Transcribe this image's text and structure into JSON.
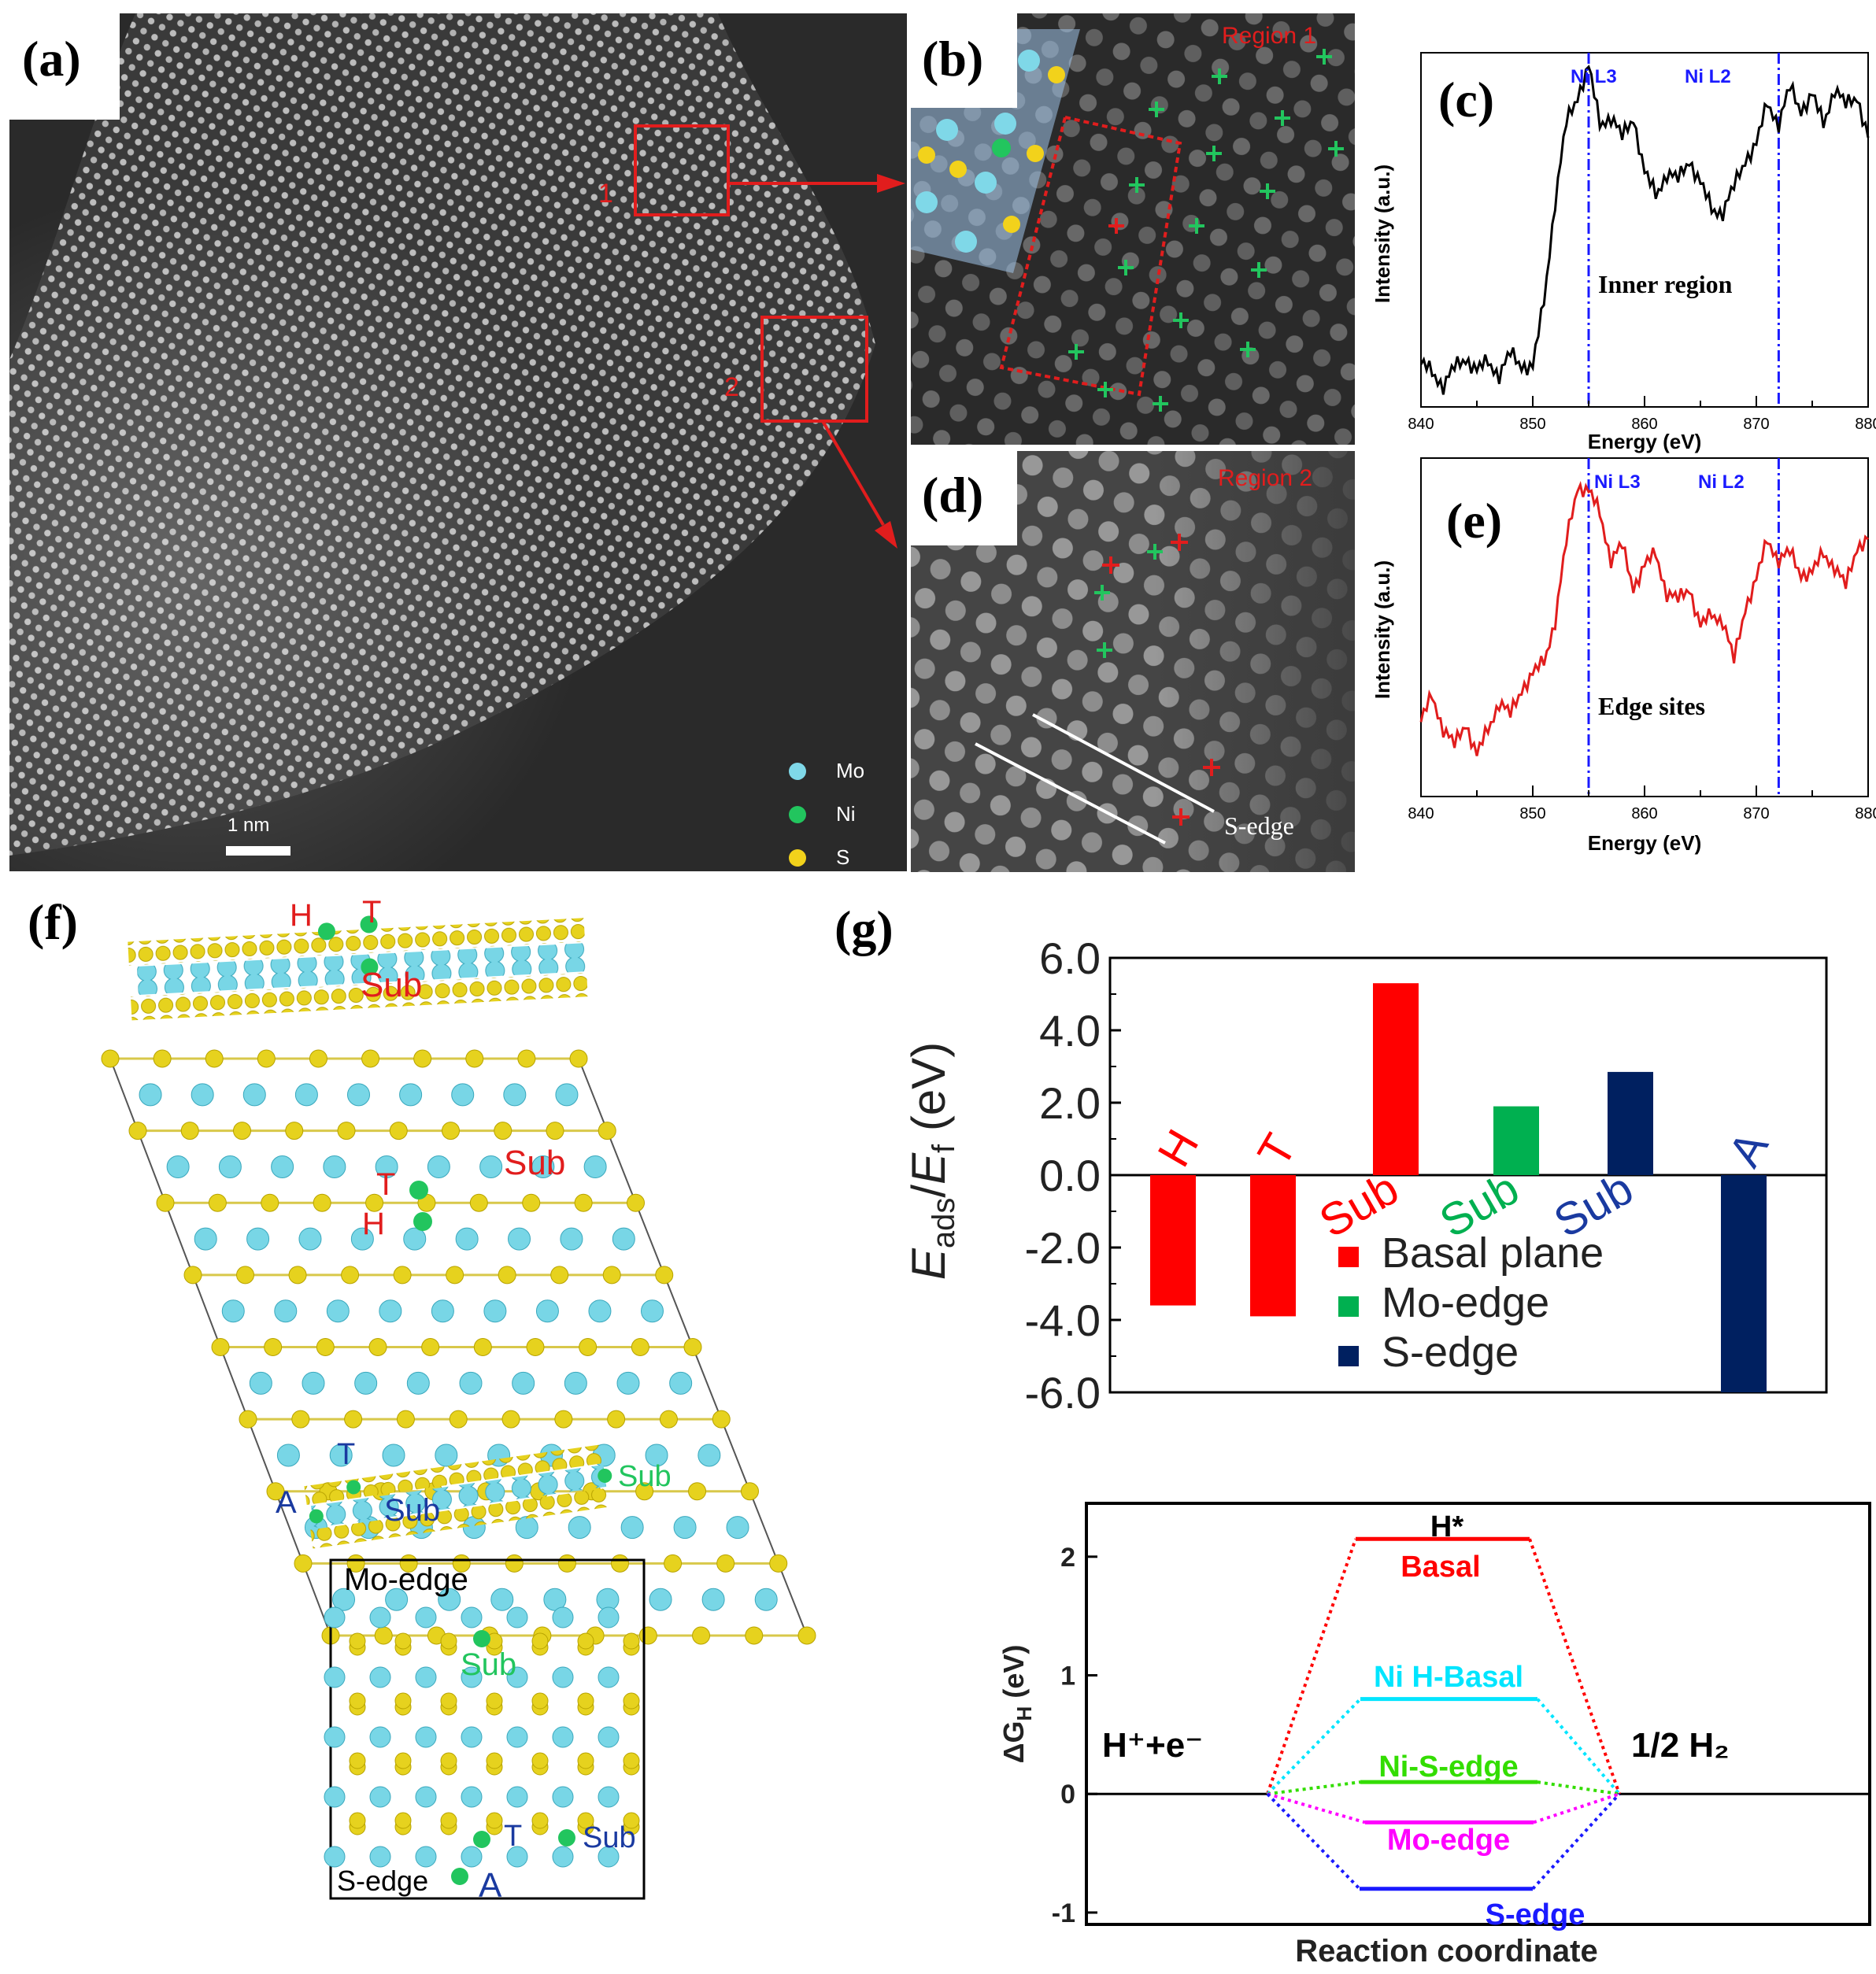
{
  "panels": {
    "a": {
      "letter": "(a)",
      "box_labels": [
        "1",
        "2"
      ],
      "legend": [
        {
          "label": "Mo",
          "color": "#7fd8e8"
        },
        {
          "label": "Ni",
          "color": "#22c55e"
        },
        {
          "label": "S",
          "color": "#f2d21b"
        }
      ],
      "scalebar": "1 nm"
    },
    "b": {
      "letter": "(b)",
      "region": "Region 1"
    },
    "c": {
      "letter": "(c)",
      "ylabel": "Intensity (a.u.)",
      "xlabel": "Energy (eV)",
      "annotation": "Inner region",
      "edge_labels": [
        "Ni L3",
        "Ni L2"
      ],
      "xticks": [
        "840",
        "850",
        "860",
        "870",
        "880"
      ]
    },
    "d": {
      "letter": "(d)",
      "region": "Region 2",
      "edge_label": "S-edge"
    },
    "e": {
      "letter": "(e)",
      "ylabel": "Intensity (a.u.)",
      "xlabel": "Energy (eV)",
      "annotation": "Edge sites",
      "edge_labels": [
        "Ni L3",
        "Ni L2"
      ],
      "xticks": [
        "840",
        "850",
        "860",
        "870",
        "880"
      ]
    },
    "f": {
      "letter": "(f)",
      "top_labels": {
        "H": "H",
        "T": "T",
        "Sub": "Sub"
      },
      "slab_labels": {
        "T": "T",
        "Sub": "Sub",
        "H": "H"
      },
      "edge_side_labels": {
        "T": "T",
        "A": "A",
        "Sub_blue": "Sub",
        "Sub_green": "Sub"
      },
      "edge_box_labels": {
        "mo_edge": "Mo-edge",
        "sub_green": "Sub",
        "T": "T",
        "sub_blue": "Sub",
        "s_edge": "S-edge",
        "A": "A"
      }
    },
    "g": {
      "letter": "(g)"
    }
  },
  "chart_data": [
    {
      "type": "line",
      "panel": "c",
      "xlabel": "Energy (eV)",
      "ylabel": "Intensity (a.u.)",
      "xlim": [
        840,
        880
      ],
      "series": [
        {
          "color": "#000000",
          "x": [
            840,
            841,
            842,
            843,
            844,
            845,
            846,
            847,
            848,
            849,
            850,
            851,
            852,
            853,
            854,
            855,
            856,
            857,
            858,
            859,
            860,
            861,
            862,
            863,
            864,
            865,
            866,
            867,
            868,
            869,
            870,
            871,
            872,
            873,
            874,
            875,
            876,
            877,
            878,
            879,
            880
          ],
          "y": [
            0.12,
            0.1,
            0.06,
            0.11,
            0.14,
            0.1,
            0.13,
            0.09,
            0.15,
            0.12,
            0.11,
            0.3,
            0.58,
            0.8,
            0.88,
            0.96,
            0.8,
            0.82,
            0.76,
            0.82,
            0.66,
            0.6,
            0.66,
            0.64,
            0.7,
            0.63,
            0.56,
            0.55,
            0.62,
            0.7,
            0.74,
            0.86,
            0.8,
            0.9,
            0.84,
            0.88,
            0.8,
            0.9,
            0.85,
            0.88,
            0.76
          ]
        }
      ],
      "vlines": [
        855,
        872
      ]
    },
    {
      "type": "line",
      "panel": "e",
      "xlabel": "Energy (eV)",
      "ylabel": "Intensity (a.u.)",
      "xlim": [
        840,
        880
      ],
      "series": [
        {
          "color": "#e11d1d",
          "x": [
            840,
            841,
            842,
            843,
            844,
            845,
            846,
            847,
            848,
            849,
            850,
            851,
            852,
            853,
            854,
            855,
            856,
            857,
            858,
            859,
            860,
            861,
            862,
            863,
            864,
            865,
            866,
            867,
            868,
            869,
            870,
            871,
            872,
            873,
            874,
            875,
            876,
            877,
            878,
            879,
            880
          ],
          "y": [
            0.22,
            0.3,
            0.2,
            0.15,
            0.22,
            0.12,
            0.2,
            0.28,
            0.24,
            0.32,
            0.36,
            0.4,
            0.52,
            0.75,
            0.92,
            0.9,
            0.84,
            0.7,
            0.74,
            0.62,
            0.68,
            0.72,
            0.6,
            0.58,
            0.62,
            0.5,
            0.54,
            0.52,
            0.4,
            0.56,
            0.64,
            0.76,
            0.7,
            0.72,
            0.66,
            0.66,
            0.72,
            0.68,
            0.62,
            0.74,
            0.76
          ]
        }
      ],
      "vlines": [
        855,
        872
      ]
    },
    {
      "type": "bar",
      "panel": "g",
      "ylabel_main": "E",
      "ylabel_sub": "ads",
      "ylabel_sep": "/",
      "ylabel_main2": "E",
      "ylabel_sub2": "f",
      "ylabel_unit": " (eV)",
      "ylim": [
        -6.0,
        6.0
      ],
      "yticks": [
        "6.0",
        "4.0",
        "2.0",
        "0.0",
        "-2.0",
        "-4.0",
        "-6.0"
      ],
      "ytick_values": [
        6,
        4,
        2,
        0,
        -2,
        -4,
        -6
      ],
      "categories": [
        "H",
        "T",
        "Sub",
        "Sub",
        "Sub",
        "A"
      ],
      "values": [
        -3.6,
        -3.9,
        5.3,
        1.9,
        2.85,
        -6.0
      ],
      "colors": [
        "#ff0000",
        "#ff0000",
        "#ff0000",
        "#00b050",
        "#002060",
        "#002060"
      ],
      "legend": [
        {
          "label": "Basal plane",
          "color": "#ff0000"
        },
        {
          "label": "Mo-edge",
          "color": "#00b050"
        },
        {
          "label": "S-edge",
          "color": "#002060"
        }
      ]
    },
    {
      "type": "line",
      "panel": "free-energy",
      "xlabel": "Reaction coordinate",
      "ylabel_main": "ΔG",
      "ylabel_sub": "H",
      "ylabel_unit": " (eV)",
      "ylim": [
        -1.1,
        2.45
      ],
      "yticks": [
        "-1",
        "0",
        "1",
        "2"
      ],
      "ytick_values": [
        -1,
        0,
        1,
        2
      ],
      "left_label": "H⁺+e⁻",
      "right_label": "1/2 H₂",
      "top_label": "H*",
      "levels": [
        {
          "name": "Basal",
          "value": 2.15,
          "color": "#ff0000"
        },
        {
          "name": "Ni H-Basal",
          "value": 0.8,
          "color": "#00e5ff"
        },
        {
          "name": "Ni-S-edge",
          "value": 0.1,
          "color": "#33dd00"
        },
        {
          "name": "Mo-edge",
          "value": -0.24,
          "color": "#ff00ff"
        },
        {
          "name": "S-edge",
          "value": -0.8,
          "color": "#1a1aff"
        }
      ]
    }
  ]
}
